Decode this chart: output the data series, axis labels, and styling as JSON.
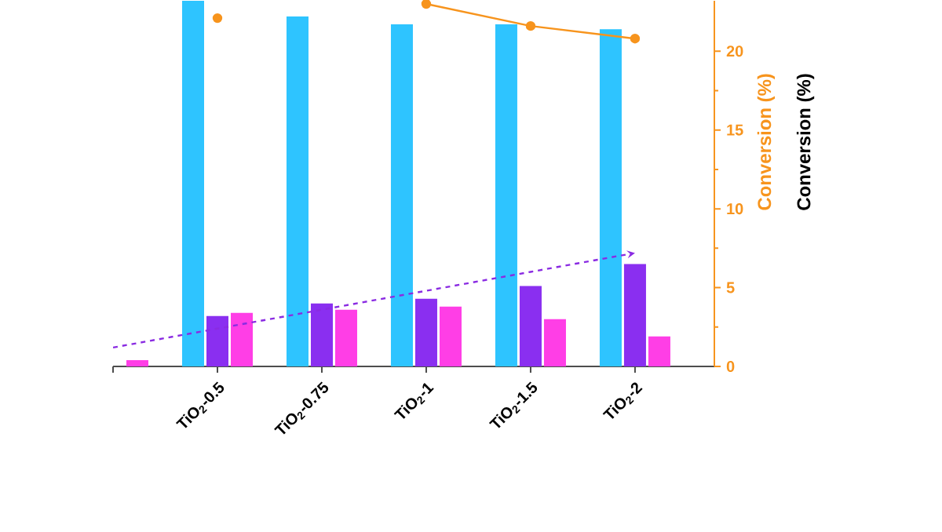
{
  "chart_data": {
    "type": "bar",
    "categories": [
      null,
      "TiO$_{2}$-0.5",
      "TiO$_{2}$-0.75",
      "TiO$_{2}$-1",
      "TiO$_{2}$-1.5",
      "TiO$_{2}$-2"
    ],
    "series": [
      {
        "color": "#2ec4ff",
        "values": [
          null,
          23.2,
          22.2,
          21.7,
          21.7,
          21.4
        ]
      },
      {
        "color": "#8a2ff0",
        "values": [
          null,
          3.2,
          4.0,
          4.3,
          5.1,
          6.5
        ]
      },
      {
        "color": "#ff3ee6",
        "values": [
          0.4,
          3.4,
          3.6,
          3.8,
          3.0,
          1.9
        ]
      },
      {
        "type": "line",
        "color": "#f7941d",
        "marker": "circle",
        "values": [
          null,
          22.1,
          null,
          23.0,
          21.6,
          20.8
        ]
      },
      {
        "type": "line",
        "color": "#8a2be2",
        "line_style": "dashed",
        "marker": "none",
        "values": [
          1.2,
          2.4,
          3.6,
          4.8,
          6.0,
          7.2
        ]
      }
    ],
    "ylim": [
      0,
      23.2
    ],
    "yticks": [
      0,
      5,
      10,
      15,
      20
    ],
    "ylabel": "Conversion (%)",
    "annotations": [
      "Conversion (%)"
    ]
  }
}
